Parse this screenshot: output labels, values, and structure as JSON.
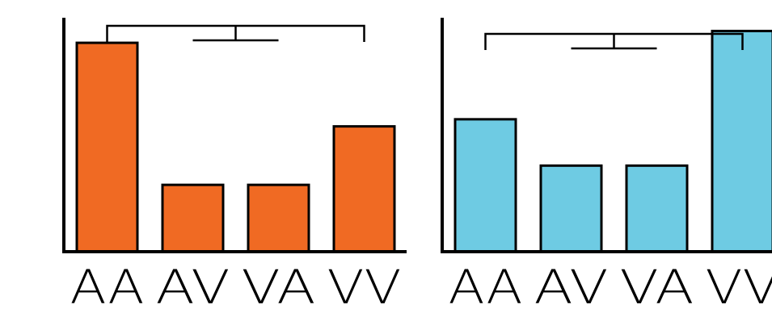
{
  "colors": {
    "left": "#F06A23",
    "right": "#6ECBE3",
    "stroke": "#000000"
  },
  "chart_data": [
    {
      "type": "bar",
      "categories": [
        "AA",
        "AV",
        "VA",
        "VV"
      ],
      "values": [
        100,
        32,
        32,
        60
      ],
      "ylim": [
        0,
        112
      ],
      "grid": false,
      "comparison_bracket": [
        "AA",
        "VV"
      ]
    },
    {
      "type": "bar",
      "categories": [
        "AA",
        "AV",
        "VA",
        "VV"
      ],
      "values": [
        60,
        39,
        39,
        100
      ],
      "ylim": [
        0,
        106
      ],
      "grid": false,
      "comparison_bracket": [
        "AA",
        "VV"
      ]
    }
  ]
}
